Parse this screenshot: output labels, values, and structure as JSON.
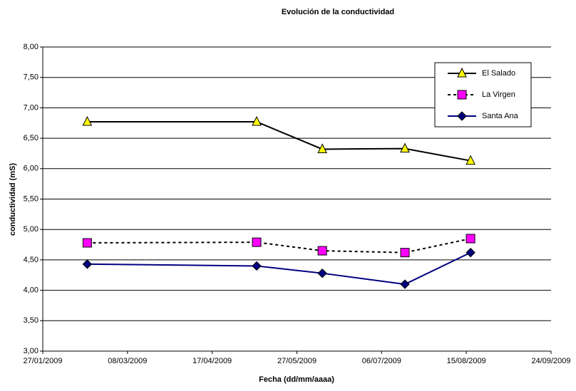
{
  "chart_data": {
    "type": "line",
    "title": "Evolución de la conductividad",
    "x_label": "Fecha (dd/mm/aaaa)",
    "y_label": "conductividad (mS)",
    "x": [
      "17/02/2009",
      "08/05/2009",
      "08/06/2009",
      "17/07/2009",
      "17/08/2009"
    ],
    "xlim": [
      "27/01/2009",
      "24/09/2009"
    ],
    "xticks": [
      "27/01/2009",
      "08/03/2009",
      "17/04/2009",
      "27/05/2009",
      "06/07/2009",
      "15/08/2009",
      "24/09/2009"
    ],
    "ylim": [
      3,
      8
    ],
    "yticks": [
      {
        "value": 3,
        "label": "3,00"
      },
      {
        "value": 3.5,
        "label": "3,50"
      },
      {
        "value": 4,
        "label": "4,00"
      },
      {
        "value": 4.5,
        "label": "4,50"
      },
      {
        "value": 5,
        "label": "5,00"
      },
      {
        "value": 5.5,
        "label": "5,50"
      },
      {
        "value": 6,
        "label": "6,00"
      },
      {
        "value": 6.5,
        "label": "6,50"
      },
      {
        "value": 7,
        "label": "7,00"
      },
      {
        "value": 7.5,
        "label": "7,50"
      },
      {
        "value": 8,
        "label": "8,00"
      }
    ],
    "grid": true,
    "legend": "upper right",
    "series": [
      {
        "name": "El Salado",
        "color": "#000000",
        "marker": "triangle",
        "marker_color": "#ffff00",
        "dash": false,
        "values": [
          6.77,
          6.77,
          6.32,
          6.33,
          6.13
        ]
      },
      {
        "name": "La Virgen",
        "color": "#000000",
        "marker": "square",
        "marker_color": "#ff00ff",
        "dash": true,
        "values": [
          4.78,
          4.79,
          4.65,
          4.62,
          4.85
        ]
      },
      {
        "name": "Santa Ana",
        "color": "#000080",
        "marker": "diamond",
        "marker_color": "#000080",
        "dash": false,
        "values": [
          4.43,
          4.4,
          4.28,
          4.1,
          4.62
        ]
      }
    ]
  }
}
